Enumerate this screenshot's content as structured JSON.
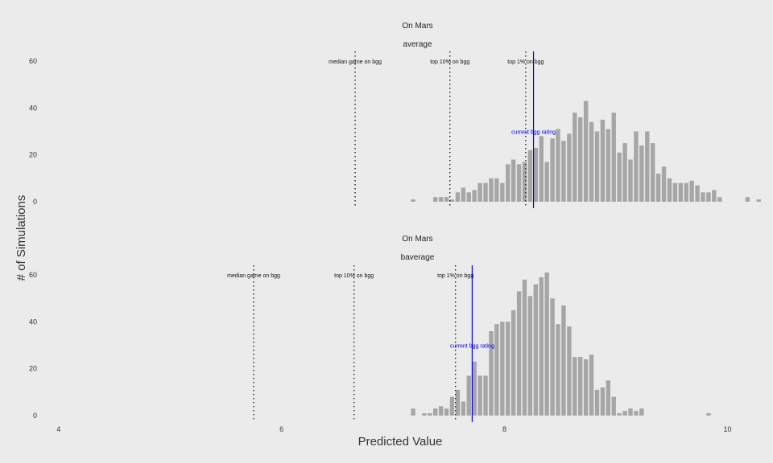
{
  "chart_data": {
    "type": "bar",
    "xlabel": "Predicted Value",
    "ylabel": "# of Simulations",
    "xlim": [
      3.85,
      10.3
    ],
    "x_ticks": [
      "4",
      "6",
      "8",
      "10"
    ],
    "y_ticks": [
      "0",
      "20",
      "40",
      "60"
    ],
    "ylim": [
      0,
      62
    ],
    "grid": false,
    "panels": [
      {
        "title": "On Mars",
        "subtitle": "average",
        "bin_width": 0.05,
        "x": [
          7.18,
          7.38,
          7.43,
          7.48,
          7.53,
          7.58,
          7.63,
          7.68,
          7.73,
          7.78,
          7.83,
          7.88,
          7.93,
          7.98,
          8.03,
          8.08,
          8.13,
          8.18,
          8.23,
          8.28,
          8.33,
          8.38,
          8.43,
          8.48,
          8.53,
          8.58,
          8.63,
          8.68,
          8.73,
          8.78,
          8.83,
          8.88,
          8.93,
          8.98,
          9.03,
          9.08,
          9.13,
          9.18,
          9.23,
          9.28,
          9.33,
          9.38,
          9.43,
          9.48,
          9.53,
          9.58,
          9.63,
          9.68,
          9.73,
          9.78,
          9.83,
          9.88,
          9.93,
          10.18,
          10.28
        ],
        "values": [
          1,
          2,
          2,
          2,
          1,
          4,
          6,
          4,
          5,
          8,
          8,
          10,
          10,
          8,
          16,
          18,
          16,
          17,
          22,
          23,
          28,
          17,
          27,
          31,
          26,
          29,
          38,
          36,
          43,
          34,
          30,
          35,
          31,
          38,
          21,
          25,
          18,
          30,
          24,
          30,
          25,
          12,
          15,
          10,
          8,
          8,
          8,
          9,
          7,
          4,
          4,
          5,
          2,
          2,
          1
        ],
        "ref_lines": [
          {
            "x": 6.66,
            "label": "median game on bgg"
          },
          {
            "x": 7.51,
            "label": "top 10% on bgg"
          },
          {
            "x": 8.19,
            "label": "top 1% on bgg"
          }
        ],
        "current": {
          "x": 8.26,
          "label": "current bgg rating"
        }
      },
      {
        "title": "On Mars",
        "subtitle": "baverage",
        "bin_width": 0.05,
        "x": [
          7.18,
          7.28,
          7.33,
          7.38,
          7.43,
          7.48,
          7.53,
          7.58,
          7.63,
          7.68,
          7.73,
          7.78,
          7.83,
          7.88,
          7.93,
          7.98,
          8.03,
          8.08,
          8.13,
          8.18,
          8.23,
          8.28,
          8.33,
          8.38,
          8.43,
          8.48,
          8.53,
          8.58,
          8.63,
          8.68,
          8.73,
          8.78,
          8.83,
          8.88,
          8.93,
          8.98,
          9.03,
          9.08,
          9.13,
          9.18,
          9.23,
          9.28,
          9.33,
          9.83
        ],
        "values": [
          3,
          1,
          1,
          3,
          4,
          3,
          8,
          11,
          6,
          17,
          23,
          17,
          17,
          36,
          39,
          40,
          40,
          45,
          53,
          58,
          51,
          56,
          59,
          61,
          50,
          39,
          47,
          38,
          25,
          25,
          24,
          26,
          11,
          12,
          15,
          8,
          1,
          2,
          3,
          2,
          3,
          0,
          0,
          1
        ],
        "ref_lines": [
          {
            "x": 5.75,
            "label": "median game on bgg"
          },
          {
            "x": 6.65,
            "label": "top 10% on bgg"
          },
          {
            "x": 7.56,
            "label": "top 1% on bgg"
          }
        ],
        "current": {
          "x": 7.71,
          "label": "current bgg rating"
        }
      }
    ]
  },
  "colors": {
    "background": "#ebebeb",
    "bar": "#a6a6a6",
    "ref_line": "#222222",
    "current_line": "#0000ee",
    "current_text": "#0000ee"
  }
}
